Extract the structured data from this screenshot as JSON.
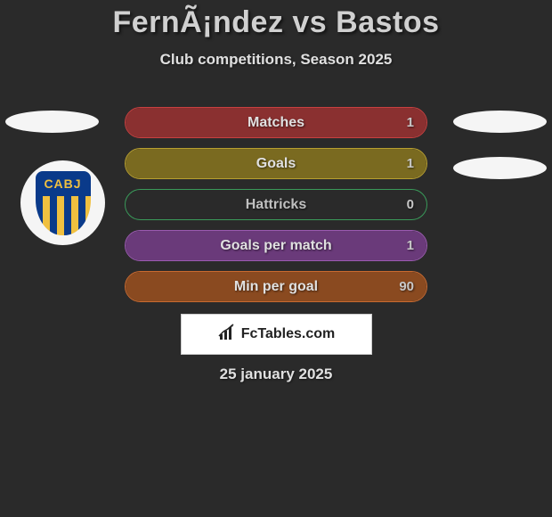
{
  "title": "FernÃ¡ndez vs Bastos",
  "subtitle": "Club competitions, Season 2025",
  "badge": {
    "text": "CABJ"
  },
  "stats": [
    {
      "label": "Matches",
      "value": "1",
      "bar_fill_pct": 100,
      "border_color": "#c84040",
      "bar_color": "#8a3030",
      "label_color": "#e0e0e0"
    },
    {
      "label": "Goals",
      "value": "1",
      "bar_fill_pct": 100,
      "border_color": "#b8a030",
      "bar_color": "#7a6a20",
      "label_color": "#e0e0e0"
    },
    {
      "label": "Hattricks",
      "value": "0",
      "bar_fill_pct": 0,
      "border_color": "#3a9a5a",
      "bar_color": "#2a6a3a",
      "label_color": "#c0c0c0"
    },
    {
      "label": "Goals per match",
      "value": "1",
      "bar_fill_pct": 100,
      "border_color": "#9a5ab0",
      "bar_color": "#6a3a7a",
      "label_color": "#e0e0e0"
    },
    {
      "label": "Min per goal",
      "value": "90",
      "bar_fill_pct": 100,
      "border_color": "#c86a30",
      "bar_color": "#8a4a20",
      "label_color": "#e0e0e0"
    }
  ],
  "footer": {
    "brand": "FcTables.com",
    "date": "25 january 2025"
  },
  "colors": {
    "background": "#2a2a2a"
  }
}
